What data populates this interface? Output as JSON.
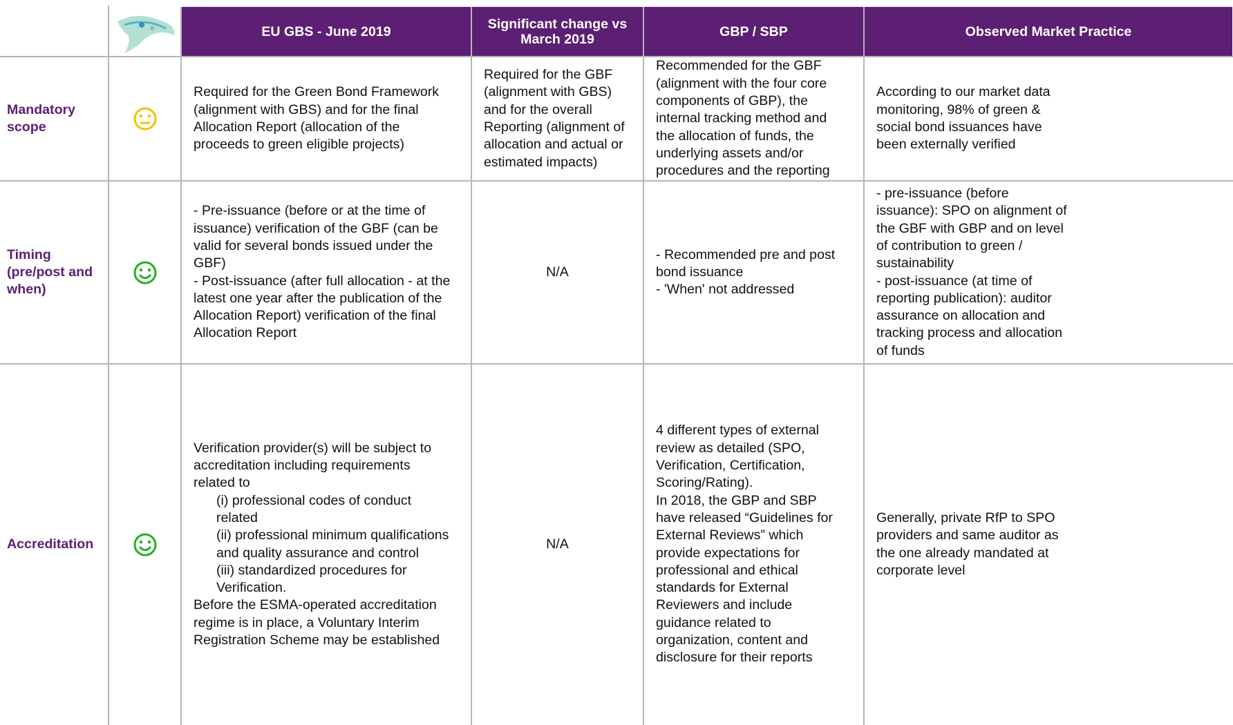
{
  "table": {
    "header": [
      [
        "EU GBS - June 2019"
      ],
      [
        "Significant change vs",
        "March 2019"
      ],
      [
        "GBP / SBP"
      ],
      [
        "Observed Market Practice"
      ]
    ],
    "rows": [
      {
        "label": [
          "Mandatory",
          "scope"
        ],
        "cells": [
          [
            "Required for the Green Bond Framework",
            "(alignment with GBS) and for the final",
            "Allocation Report (allocation of the",
            "proceeds to green eligible projects)"
          ],
          [
            "Required for the GBF",
            "(alignment with GBS)",
            "and for the overall",
            "Reporting (alignment of",
            "allocation and actual or",
            "estimated impacts)"
          ],
          [
            "Recommended for the GBF",
            "(alignment with the four core",
            "components of GBP), the",
            "internal tracking method and",
            "the allocation of funds, the",
            "underlying assets and/or",
            "procedures and the reporting"
          ],
          [
            "According to our market data",
            "monitoring, 98% of green &",
            "social bond issuances have",
            "been externally verified"
          ]
        ]
      },
      {
        "label": [
          "Timing",
          "(pre/post and",
          "when)"
        ],
        "cells": [
          [
            "- Pre-issuance (before or at the time of",
            "issuance) verification of the GBF (can be",
            "valid for several bonds issued under the",
            "GBF)",
            "- Post-issuance (after full allocation - at the",
            "latest one year after the publication of the",
            "Allocation Report) verification of the final",
            "Allocation Report"
          ],
          [
            "N/A"
          ],
          [
            "- Recommended pre and post",
            "bond issuance",
            "- 'When' not addressed"
          ],
          [
            "- pre-issuance (before",
            "issuance): SPO on alignment of",
            "the GBF with GBP and on level",
            "of contribution to green /",
            "sustainability",
            "- post-issuance (at time of",
            "reporting publication): auditor",
            "assurance on allocation and",
            "tracking process and allocation",
            "of funds"
          ]
        ]
      },
      {
        "label": [
          "Accreditation"
        ],
        "cells": [
          {
            "intro": [
              "Verification provider(s) will be subject to",
              "accreditation including requirements",
              "related to"
            ],
            "items": [
              [
                "(i) professional codes of conduct",
                "related"
              ],
              [
                "(ii) professional minimum qualifications",
                "and quality assurance and control"
              ],
              [
                "(iii) standardized procedures for",
                "Verification."
              ]
            ],
            "outro": [
              "Before the ESMA-operated accreditation",
              "regime is in place, a Voluntary Interim",
              "Registration Scheme may be established"
            ]
          },
          [
            "N/A"
          ],
          [
            "4 different types of external",
            "review as detailed (SPO,",
            "Verification, Certification,",
            "Scoring/Rating).",
            "In 2018, the GBP and SBP",
            "have released “Guidelines for",
            "External Reviews” which",
            "provide expectations for",
            "professional and ethical",
            "standards for External",
            "Reviewers and include",
            "guidance related to",
            "organization, content and",
            "disclosure for their reports"
          ],
          [
            "Generally, private RfP to SPO",
            "providers and same auditor as",
            "the one already mandated at",
            "corporate level"
          ]
        ]
      }
    ]
  }
}
